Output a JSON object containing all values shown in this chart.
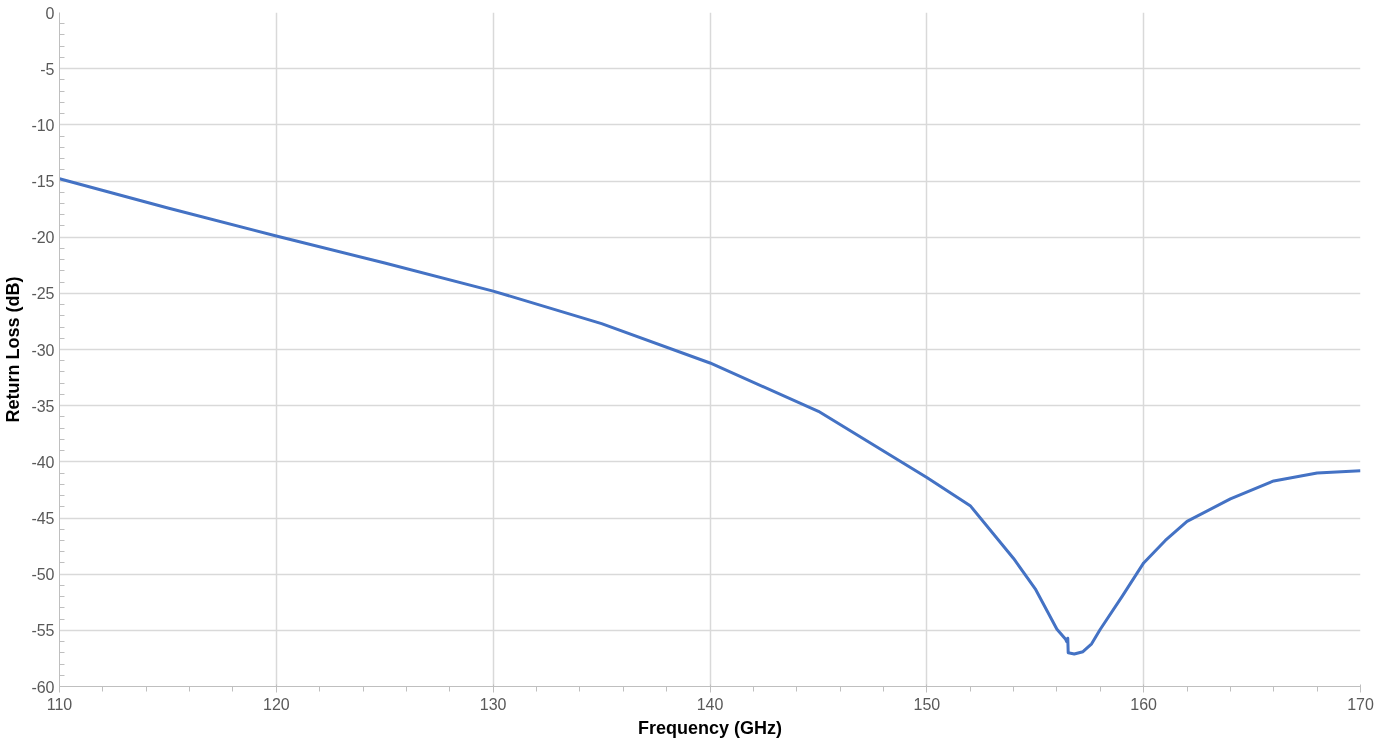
{
  "chart_data": {
    "type": "line",
    "xlabel": "Frequency (GHz)",
    "ylabel": "Return Loss (dB)",
    "xlim": [
      110,
      170
    ],
    "ylim": [
      -60,
      0
    ],
    "xticks": [
      110,
      120,
      130,
      140,
      150,
      160,
      170
    ],
    "yticks": [
      0,
      -5,
      -10,
      -15,
      -20,
      -25,
      -30,
      -35,
      -40,
      -45,
      -50,
      -55,
      -60
    ],
    "grid": true,
    "marker": "none",
    "line_style": "solid",
    "series": [
      {
        "color": "#4472c4",
        "x": [
          110,
          115,
          120,
          125,
          130,
          135,
          140,
          145,
          150,
          152,
          154,
          155,
          156,
          156.4,
          156.45,
          156.5,
          156.52,
          156.8,
          157.2,
          157.6,
          158,
          159,
          160,
          161,
          162,
          164,
          166,
          168,
          170
        ],
        "values": [
          -14.8,
          -17.4,
          -19.9,
          -22.3,
          -24.8,
          -27.7,
          -31.2,
          -35.5,
          -41.4,
          -43.9,
          -48.6,
          -51.3,
          -54.9,
          -55.8,
          -56.0,
          -55.7,
          -57.0,
          -57.1,
          -56.9,
          -56.2,
          -54.9,
          -52.0,
          -49.0,
          -47.0,
          -45.3,
          -43.3,
          -41.7,
          -41.0,
          -40.8
        ]
      }
    ]
  }
}
